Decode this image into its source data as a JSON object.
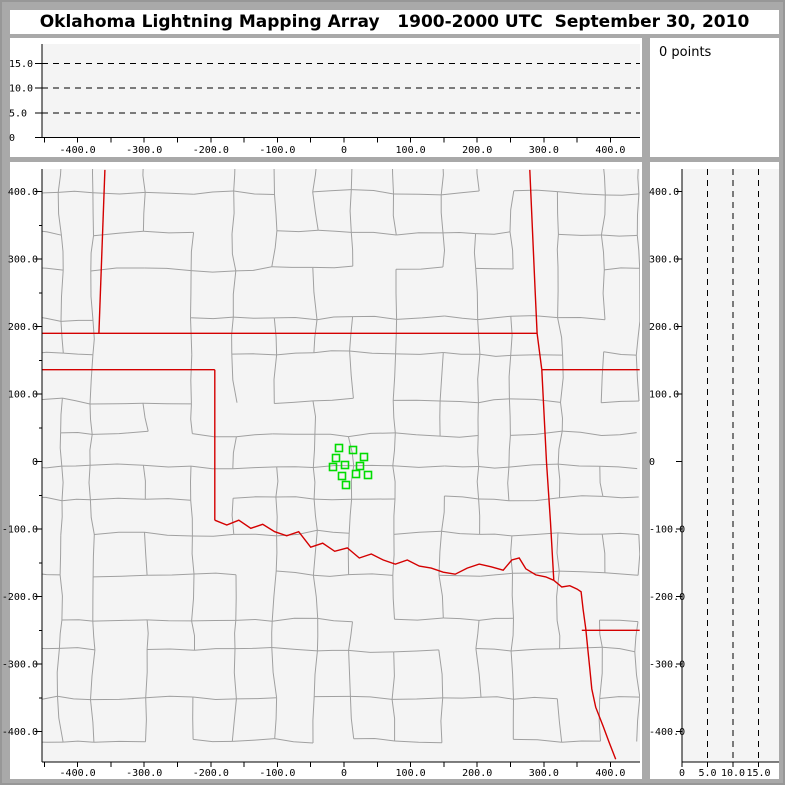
{
  "title": "Oklahoma Lightning Mapping Array   1900-2000 UTC  September 30, 2010",
  "points_panel": {
    "label": "0 points"
  },
  "colors": {
    "background": "#a9a9a9",
    "panel": "#ffffff",
    "plot_bg": "#f4f4f4",
    "axis": "#000000",
    "county_line": "#a0a0a0",
    "state_border": "#d40000",
    "station": "#00dc00",
    "text": "#000000"
  },
  "chart_data": {
    "type": "scatter",
    "title": "Oklahoma Lightning Mapping Array 1900-2000 UTC September 30, 2010",
    "points_count": 0,
    "units": "km",
    "legend_position": "none",
    "grid": "dashed altitude gridlines only",
    "ew_axis": {
      "range": [
        -453,
        444
      ],
      "tick_values": [
        -400,
        -300,
        -200,
        -100,
        0,
        100,
        200,
        300,
        400
      ],
      "tick_labels": [
        "-400.0",
        "-300.0",
        "-200.0",
        "-100.0",
        "0",
        "100.0",
        "200.0",
        "300.0",
        "400.0"
      ],
      "minor_step": 50
    },
    "ns_axis": {
      "range": [
        -445,
        433
      ],
      "tick_values": [
        400,
        300,
        200,
        100,
        0,
        -100,
        -200,
        -300,
        -400
      ],
      "tick_labels": [
        "400.0",
        "300.0",
        "200.0",
        "100.0",
        "0",
        "-100.0",
        "-200.0",
        "-300.0",
        "-400.0"
      ],
      "minor_step": 50
    },
    "alt_axis": {
      "range": [
        0,
        19
      ],
      "tick_values": [
        0,
        5,
        10,
        15
      ],
      "tick_labels": [
        "0",
        "5.0",
        "10.0",
        "15.0"
      ],
      "gridlines": [
        5,
        10,
        15
      ]
    },
    "stations_km": [
      [
        -7.5,
        20.0
      ],
      [
        13.5,
        17.0
      ],
      [
        30.0,
        6.7
      ],
      [
        -12.0,
        5.2
      ],
      [
        -16.5,
        -8.1
      ],
      [
        1.5,
        -5.2
      ],
      [
        24.0,
        -6.7
      ],
      [
        -3.0,
        -21.5
      ],
      [
        18.0,
        -18.5
      ],
      [
        36.0,
        -20.0
      ],
      [
        3.0,
        -34.8
      ]
    ],
    "state_borders_km": [
      [
        [
          -359,
          432
        ],
        [
          -368,
          190
        ]
      ],
      [
        [
          -453,
          190
        ],
        [
          290,
          190
        ]
      ],
      [
        [
          279,
          432
        ],
        [
          287,
          254
        ],
        [
          290,
          190
        ],
        [
          297,
          136
        ]
      ],
      [
        [
          297,
          136
        ],
        [
          444,
          136
        ]
      ],
      [
        [
          297,
          136
        ],
        [
          304,
          -1
        ],
        [
          310,
          -90
        ],
        [
          315,
          -176
        ]
      ],
      [
        [
          -453,
          136
        ],
        [
          -194,
          136
        ]
      ],
      [
        [
          -194,
          136
        ],
        [
          -194,
          -87
        ]
      ],
      [
        [
          -194,
          -87
        ],
        [
          -176,
          -94
        ],
        [
          -158,
          -87
        ],
        [
          -140,
          -99
        ],
        [
          -122,
          -93
        ],
        [
          -104,
          -104
        ],
        [
          -86,
          -110
        ],
        [
          -68,
          -104
        ],
        [
          -50,
          -127
        ],
        [
          -32,
          -121
        ],
        [
          -14,
          -133
        ],
        [
          5,
          -128
        ],
        [
          23,
          -143
        ],
        [
          41,
          -137
        ],
        [
          59,
          -146
        ],
        [
          77,
          -152
        ],
        [
          95,
          -146
        ],
        [
          113,
          -155
        ],
        [
          131,
          -158
        ],
        [
          149,
          -164
        ],
        [
          167,
          -167
        ],
        [
          185,
          -158
        ],
        [
          203,
          -152
        ],
        [
          221,
          -156
        ],
        [
          239,
          -161
        ],
        [
          252,
          -146
        ],
        [
          263,
          -143
        ],
        [
          273,
          -159
        ],
        [
          288,
          -168
        ],
        [
          303,
          -171
        ],
        [
          315,
          -176
        ]
      ],
      [
        [
          315,
          -176
        ],
        [
          327,
          -186
        ],
        [
          339,
          -184
        ],
        [
          350,
          -189
        ],
        [
          356,
          -193
        ],
        [
          359,
          -219
        ],
        [
          363,
          -248
        ],
        [
          366,
          -278
        ],
        [
          369,
          -307
        ],
        [
          372,
          -337
        ],
        [
          378,
          -364
        ],
        [
          389,
          -392
        ],
        [
          398,
          -416
        ],
        [
          408,
          -441
        ]
      ],
      [
        [
          357,
          -250
        ],
        [
          444,
          -250
        ]
      ]
    ],
    "county_mesh": {
      "cell_w_km": 63,
      "cell_h_km": 59,
      "jitter_km": 4.5,
      "skip_probability": 0.22,
      "seed": 7
    }
  }
}
